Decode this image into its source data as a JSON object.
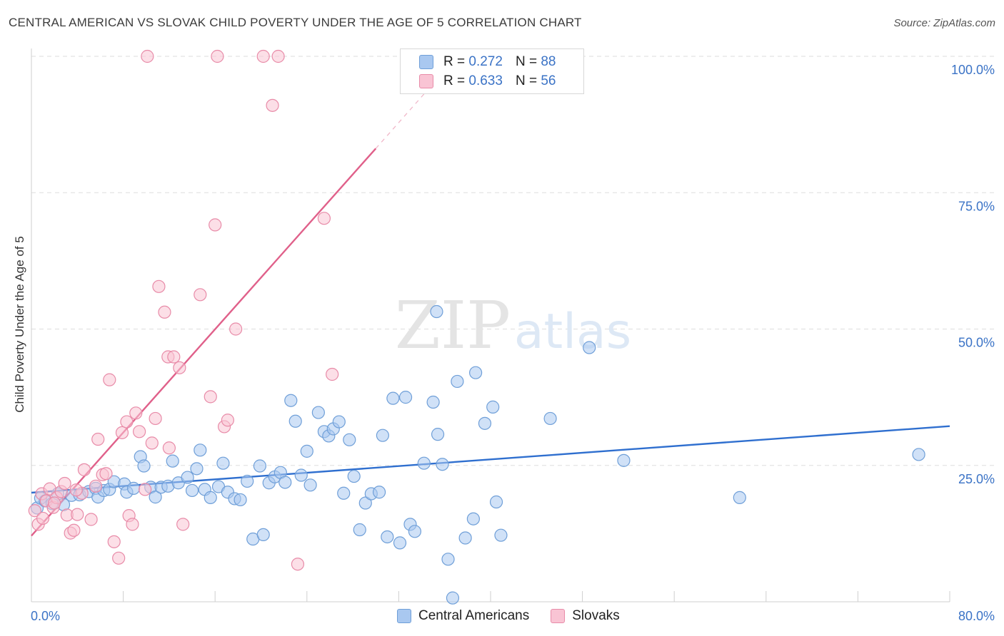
{
  "title": "CENTRAL AMERICAN VS SLOVAK CHILD POVERTY UNDER THE AGE OF 5 CORRELATION CHART",
  "source": "Source: ZipAtlas.com",
  "watermark": {
    "zip": "ZIP",
    "atlas": "atlas"
  },
  "legend": {
    "rows": [
      {
        "r_label": "R = ",
        "r_value": "0.272",
        "n_label": "N = ",
        "n_value": "88",
        "color": "#a9c8f0",
        "border": "#6f9fd8"
      },
      {
        "r_label": "R = ",
        "r_value": "0.633",
        "n_label": "N = ",
        "n_value": "56",
        "color": "#f9c4d4",
        "border": "#e88ba8"
      }
    ]
  },
  "bottom_legend": [
    {
      "label": "Central Americans",
      "color": "#a9c8f0",
      "border": "#6f9fd8"
    },
    {
      "label": "Slovaks",
      "color": "#f9c4d4",
      "border": "#e88ba8"
    }
  ],
  "chart_data": {
    "type": "scatter",
    "title": "CENTRAL AMERICAN VS SLOVAK CHILD POVERTY UNDER THE AGE OF 5 CORRELATION CHART",
    "xlabel": "",
    "ylabel": "Child Poverty Under the Age of 5",
    "xlim": [
      0,
      80
    ],
    "ylim": [
      0,
      100
    ],
    "x_tick_labels": [
      "0.0%",
      "80.0%"
    ],
    "y_ticks": [
      25,
      50,
      75,
      100
    ],
    "y_tick_labels": [
      "25.0%",
      "50.0%",
      "75.0%",
      "100.0%"
    ],
    "grid": true,
    "legend_position": "top-center",
    "series": [
      {
        "name": "Central Americans",
        "color": "#6f9fd8",
        "fill": "#a9c8f0",
        "trend": {
          "x": [
            0,
            80
          ],
          "y": [
            20.0,
            32.2
          ],
          "color": "#2f6fcf"
        },
        "points": [
          [
            0.5,
            17.2
          ],
          [
            0.8,
            19.0
          ],
          [
            1.2,
            18.5
          ],
          [
            1.8,
            18.0
          ],
          [
            2.3,
            19.8
          ],
          [
            2.8,
            17.8
          ],
          [
            3.5,
            19.5
          ],
          [
            4.2,
            19.6
          ],
          [
            5.0,
            20.2
          ],
          [
            5.6,
            20.8
          ],
          [
            5.8,
            19.2
          ],
          [
            6.3,
            20.4
          ],
          [
            6.8,
            20.6
          ],
          [
            7.2,
            22.0
          ],
          [
            8.1,
            21.6
          ],
          [
            8.3,
            20.1
          ],
          [
            8.9,
            20.8
          ],
          [
            9.5,
            26.6
          ],
          [
            9.8,
            24.9
          ],
          [
            10.4,
            21.0
          ],
          [
            10.8,
            19.2
          ],
          [
            11.3,
            21.0
          ],
          [
            11.9,
            21.2
          ],
          [
            12.3,
            25.8
          ],
          [
            12.8,
            21.8
          ],
          [
            13.6,
            22.8
          ],
          [
            14.0,
            20.4
          ],
          [
            14.4,
            24.4
          ],
          [
            14.7,
            27.8
          ],
          [
            15.1,
            20.6
          ],
          [
            15.6,
            19.1
          ],
          [
            16.3,
            21.1
          ],
          [
            16.7,
            25.4
          ],
          [
            17.1,
            20.1
          ],
          [
            17.7,
            18.9
          ],
          [
            18.2,
            18.7
          ],
          [
            18.8,
            22.1
          ],
          [
            19.3,
            11.5
          ],
          [
            19.9,
            24.9
          ],
          [
            20.2,
            12.3
          ],
          [
            20.7,
            21.8
          ],
          [
            21.2,
            22.9
          ],
          [
            21.7,
            23.7
          ],
          [
            22.1,
            21.9
          ],
          [
            22.6,
            36.9
          ],
          [
            23.0,
            33.1
          ],
          [
            23.5,
            23.2
          ],
          [
            24.0,
            27.6
          ],
          [
            24.3,
            21.4
          ],
          [
            25.0,
            34.7
          ],
          [
            25.5,
            31.2
          ],
          [
            25.9,
            30.4
          ],
          [
            26.3,
            31.7
          ],
          [
            26.8,
            33.0
          ],
          [
            27.2,
            19.9
          ],
          [
            27.7,
            29.7
          ],
          [
            28.1,
            23.0
          ],
          [
            28.6,
            13.2
          ],
          [
            29.1,
            18.1
          ],
          [
            29.6,
            19.8
          ],
          [
            30.3,
            20.1
          ],
          [
            30.6,
            30.5
          ],
          [
            31.0,
            11.9
          ],
          [
            31.5,
            37.3
          ],
          [
            32.1,
            10.8
          ],
          [
            32.6,
            37.5
          ],
          [
            33.0,
            14.2
          ],
          [
            33.4,
            12.9
          ],
          [
            34.2,
            25.4
          ],
          [
            35.0,
            36.6
          ],
          [
            35.4,
            30.7
          ],
          [
            35.8,
            25.2
          ],
          [
            36.3,
            7.8
          ],
          [
            37.1,
            40.4
          ],
          [
            37.8,
            11.7
          ],
          [
            38.5,
            15.2
          ],
          [
            38.7,
            42.0
          ],
          [
            39.5,
            32.7
          ],
          [
            40.2,
            35.7
          ],
          [
            40.5,
            18.3
          ],
          [
            40.9,
            12.2
          ],
          [
            45.2,
            33.6
          ],
          [
            48.6,
            46.6
          ],
          [
            51.6,
            25.9
          ],
          [
            61.7,
            19.1
          ],
          [
            77.3,
            27.0
          ],
          [
            36.7,
            0.7
          ],
          [
            35.3,
            53.2
          ]
        ]
      },
      {
        "name": "Slovaks",
        "color": "#e88ba8",
        "fill": "#f9c4d4",
        "trend": {
          "x": [
            0,
            30.0
          ],
          "y": [
            12.1,
            83.1
          ],
          "dash_to": [
            34.5,
            93.8
          ],
          "color": "#e0608a"
        },
        "points": [
          [
            0.3,
            16.7
          ],
          [
            0.6,
            14.2
          ],
          [
            0.9,
            19.8
          ],
          [
            1.3,
            18.5
          ],
          [
            1.6,
            20.7
          ],
          [
            1.9,
            17.3
          ],
          [
            2.2,
            19.1
          ],
          [
            2.6,
            20.2
          ],
          [
            2.9,
            21.7
          ],
          [
            3.1,
            15.9
          ],
          [
            3.4,
            12.6
          ],
          [
            3.7,
            13.1
          ],
          [
            4.0,
            16.0
          ],
          [
            4.4,
            19.9
          ],
          [
            4.6,
            24.2
          ],
          [
            5.2,
            15.1
          ],
          [
            5.8,
            29.8
          ],
          [
            6.2,
            23.3
          ],
          [
            6.5,
            23.5
          ],
          [
            6.8,
            40.7
          ],
          [
            7.2,
            11.0
          ],
          [
            7.6,
            8.0
          ],
          [
            7.9,
            31.0
          ],
          [
            8.3,
            33.0
          ],
          [
            8.5,
            15.8
          ],
          [
            8.8,
            14.2
          ],
          [
            9.1,
            34.6
          ],
          [
            9.4,
            31.2
          ],
          [
            9.9,
            20.6
          ],
          [
            10.1,
            100.0
          ],
          [
            10.5,
            29.1
          ],
          [
            10.8,
            33.6
          ],
          [
            11.1,
            57.8
          ],
          [
            11.6,
            53.1
          ],
          [
            11.9,
            44.9
          ],
          [
            12.0,
            28.2
          ],
          [
            12.4,
            44.9
          ],
          [
            12.9,
            42.9
          ],
          [
            13.2,
            14.2
          ],
          [
            14.7,
            56.3
          ],
          [
            15.6,
            37.6
          ],
          [
            16.0,
            69.1
          ],
          [
            16.2,
            100.0
          ],
          [
            16.8,
            32.1
          ],
          [
            17.1,
            33.3
          ],
          [
            17.8,
            50.0
          ],
          [
            20.2,
            100.0
          ],
          [
            21.0,
            91.0
          ],
          [
            21.5,
            100.0
          ],
          [
            23.2,
            6.9
          ],
          [
            25.5,
            70.3
          ],
          [
            26.2,
            41.7
          ],
          [
            5.6,
            21.2
          ],
          [
            2.0,
            18.1
          ],
          [
            1.0,
            15.3
          ],
          [
            3.9,
            20.5
          ]
        ]
      }
    ]
  }
}
